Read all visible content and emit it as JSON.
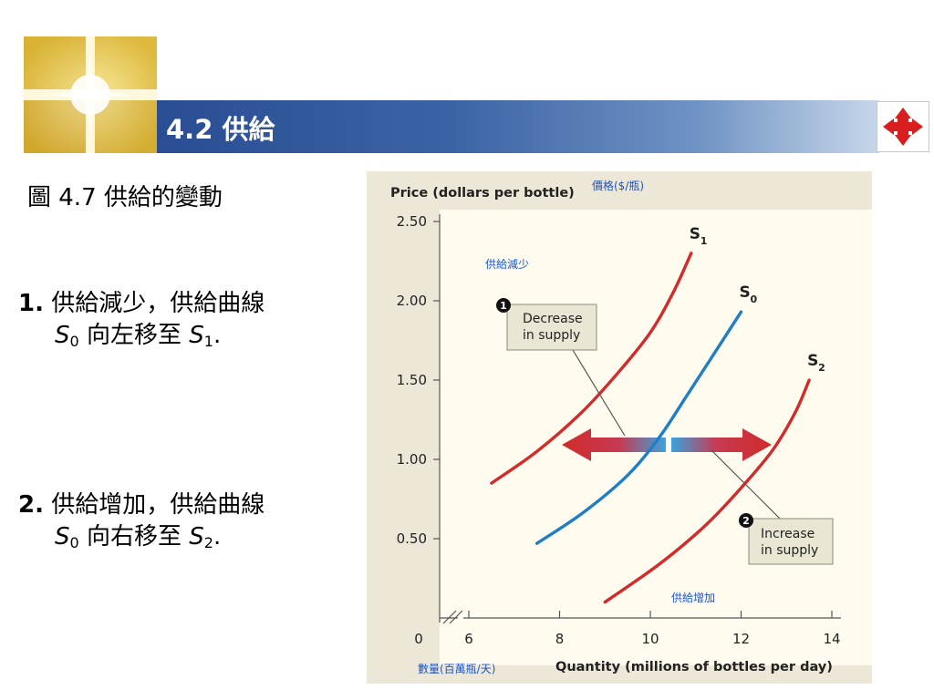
{
  "slide": {
    "title": "4.2 供給",
    "figure_title": "圖 4.7 供給的變動",
    "points": [
      {
        "number": "1.",
        "line1": "供給減少，供給曲線",
        "from_curve": "S",
        "from_sub": "0",
        "move_text": " 向左移至 ",
        "to_curve": "S",
        "to_sub": "1",
        "end": "."
      },
      {
        "number": "2.",
        "line1": "供給增加，供給曲線",
        "from_curve": "S",
        "from_sub": "0",
        "move_text": " 向右移至 ",
        "to_curve": "S",
        "to_sub": "2",
        "end": "."
      }
    ]
  },
  "colors": {
    "title_bar": "#2a4d94",
    "chart_bg": "#ece7d6",
    "supply_shifted": "#d12b2b",
    "supply_original": "#1f7ec6",
    "annotation_blue": "#1a55c8",
    "callout_bg": "#e9e6d4"
  },
  "icons": {
    "logo": "gold-light-window-icon",
    "nav": "red-four-way-arrow-icon"
  },
  "chart_data": {
    "type": "line",
    "title": "",
    "ylabel": "Price (dollars per bottle)",
    "ylabel_zh": "價格($/瓶)",
    "xlabel": "Quantity (millions of bottles per day)",
    "xlabel_zh": "數量(百萬瓶/天)",
    "xlim": [
      5,
      14
    ],
    "ylim": [
      0,
      2.5
    ],
    "x_ticks": [
      {
        "value": 6,
        "label": "6"
      },
      {
        "value": 8,
        "label": "8"
      },
      {
        "value": 10,
        "label": "10"
      },
      {
        "value": 12,
        "label": "12"
      },
      {
        "value": 14,
        "label": "14"
      }
    ],
    "x_origin_label": "0",
    "y_ticks": [
      {
        "value": 2.5,
        "label": "2.50"
      },
      {
        "value": 2.0,
        "label": "2.00"
      },
      {
        "value": 1.5,
        "label": "1.50"
      },
      {
        "value": 1.0,
        "label": "1.00"
      },
      {
        "value": 0.5,
        "label": "0.50"
      }
    ],
    "grid": false,
    "series": [
      {
        "name": "S",
        "sub": "1",
        "color": "#d12b2b",
        "x": [
          6.5,
          7.5,
          8.5,
          9.3,
          10.0,
          10.5,
          10.9
        ],
        "y": [
          0.85,
          1.05,
          1.3,
          1.55,
          1.8,
          2.05,
          2.3
        ]
      },
      {
        "name": "S",
        "sub": "0",
        "color": "#1f7ec6",
        "x": [
          7.5,
          8.5,
          9.5,
          10.2,
          10.8,
          11.3,
          12.0
        ],
        "y": [
          0.47,
          0.66,
          0.9,
          1.14,
          1.4,
          1.62,
          1.93
        ]
      },
      {
        "name": "S",
        "sub": "2",
        "color": "#d12b2b",
        "x": [
          9.0,
          10.2,
          11.2,
          12.0,
          12.7,
          13.2,
          13.5
        ],
        "y": [
          0.1,
          0.34,
          0.58,
          0.82,
          1.06,
          1.3,
          1.5
        ]
      }
    ],
    "annotations": {
      "decrease_marker": "1",
      "decrease_label": [
        "Decrease",
        "in supply"
      ],
      "increase_marker": "2",
      "increase_label": [
        "Increase",
        "in supply"
      ],
      "decrease_zh": "供給減少",
      "increase_zh": "供給增加"
    }
  }
}
